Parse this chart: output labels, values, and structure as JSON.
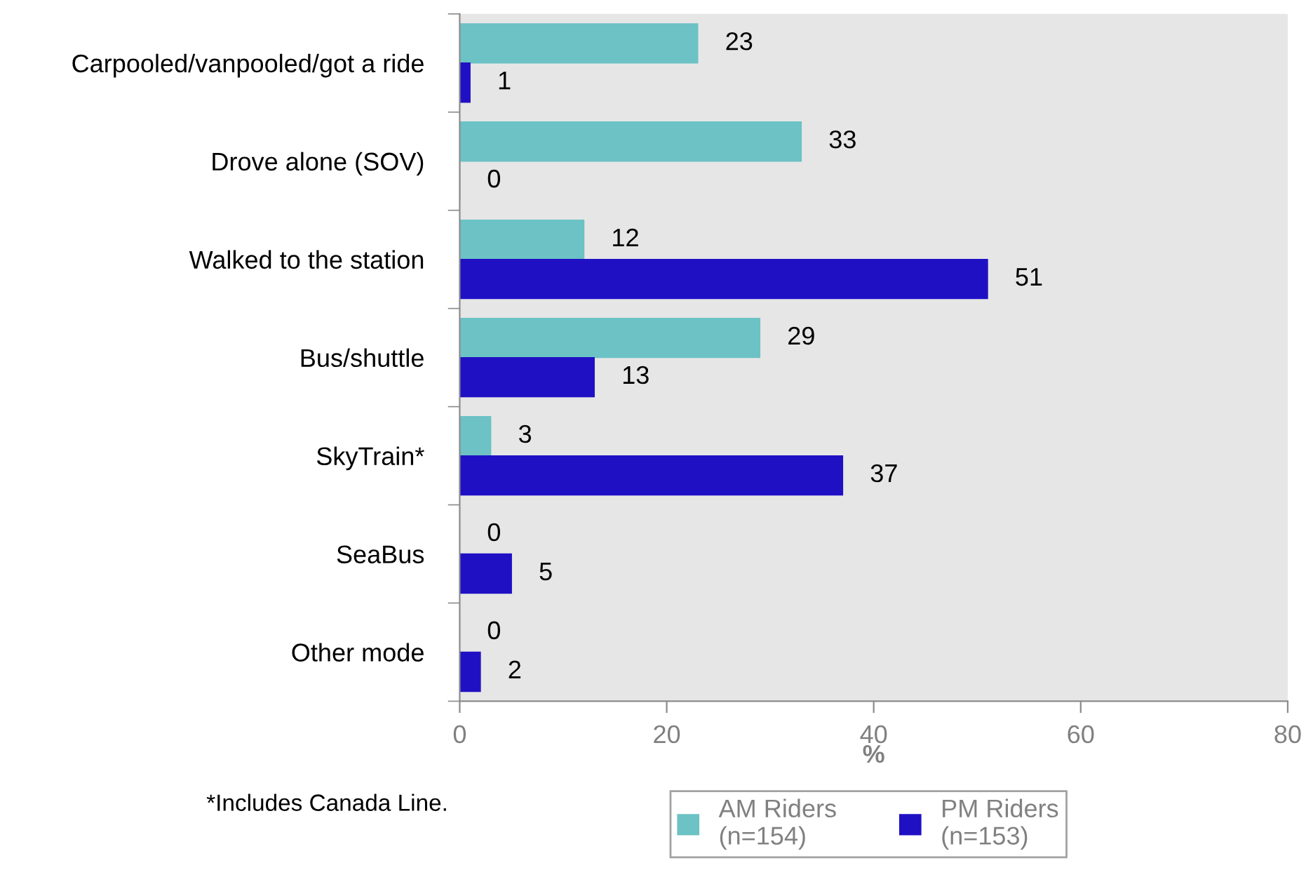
{
  "chart_data": {
    "type": "bar",
    "orientation": "horizontal",
    "categories": [
      "Carpooled/vanpooled/got a ride",
      "Drove alone (SOV)",
      "Walked to the station",
      "Bus/shuttle",
      "SkyTrain*",
      "SeaBus",
      "Other mode"
    ],
    "series": [
      {
        "name": "AM Riders\n(n=154)",
        "color": "#6cc2c4",
        "values": [
          23,
          33,
          12,
          29,
          3,
          0,
          0
        ]
      },
      {
        "name": "PM Riders\n(n=153)",
        "color": "#2010c4",
        "values": [
          1,
          0,
          51,
          13,
          37,
          5,
          2
        ]
      }
    ],
    "xlim": [
      0,
      80
    ],
    "xticks": [
      0,
      20,
      40,
      60,
      80
    ],
    "xlabel": "%",
    "data_labels": true,
    "legend": "bottom",
    "annotations": [
      "*Includes Canada Line."
    ]
  }
}
